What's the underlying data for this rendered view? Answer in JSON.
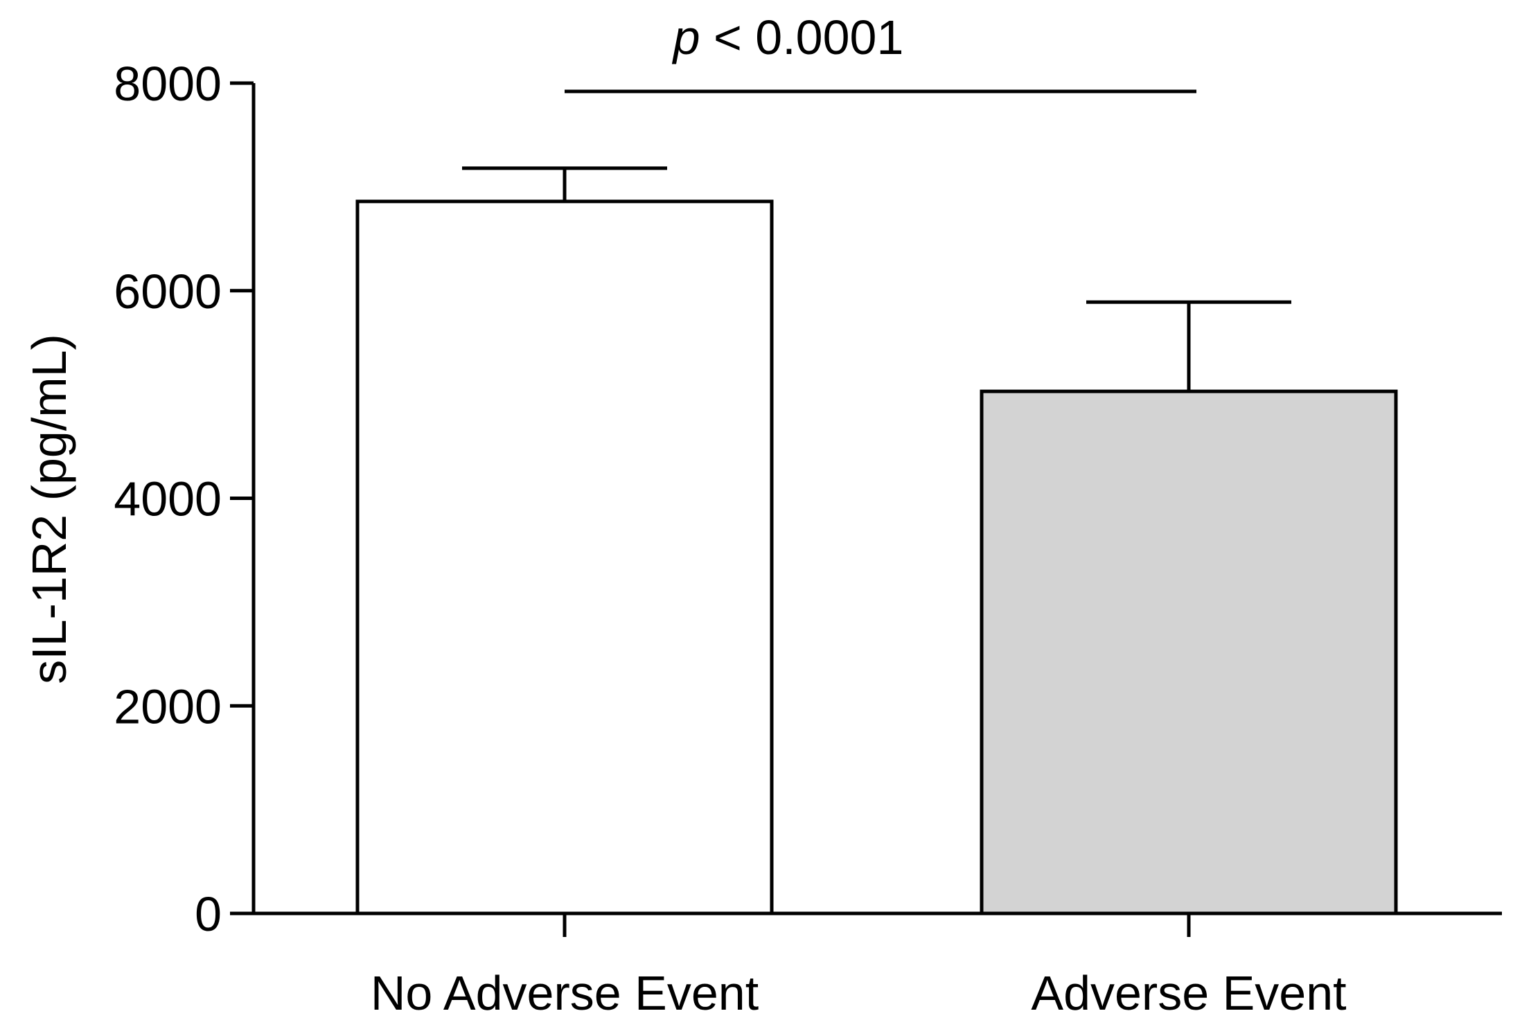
{
  "chart_data": {
    "type": "bar",
    "title": "",
    "xlabel": "",
    "ylabel": "sIL-1R2 (pg/mL)",
    "ylim": [
      0,
      8000
    ],
    "yticks": [
      0,
      2000,
      4000,
      6000,
      8000
    ],
    "categories": [
      "No Adverse Event",
      "Adverse Event"
    ],
    "values": [
      6860,
      5030
    ],
    "error_upper": [
      7180,
      5890
    ],
    "bar_colors": [
      "#ffffff",
      "#d3d3d3"
    ],
    "bar_edge_color": "#000000",
    "grid": false,
    "legend": "none",
    "annotation": {
      "p_symbol": "p",
      "comparison": " < 0.0001",
      "between": [
        "No Adverse Event",
        "Adverse Event"
      ]
    }
  }
}
